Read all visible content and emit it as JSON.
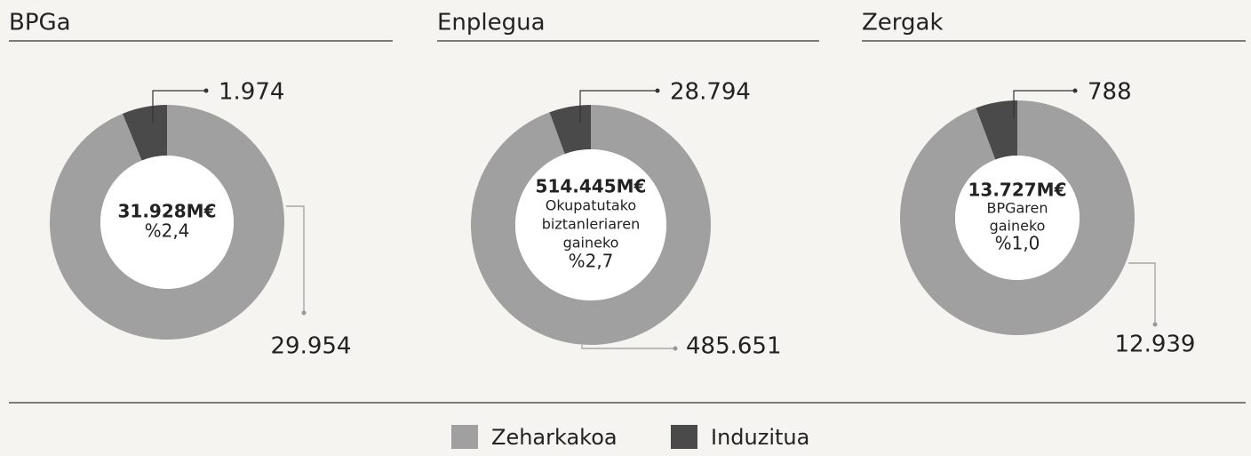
{
  "chart_data": [
    {
      "type": "donut",
      "title": "BPGa",
      "categories": [
        "Zeharkakoa",
        "Induzitua"
      ],
      "values": [
        29954,
        1974
      ],
      "value_labels": [
        "29.954",
        "1.974"
      ],
      "colors": [
        "#a0a0a0",
        "#4a4a4a"
      ],
      "center_lines": [
        "31.928M€",
        "%2,4"
      ]
    },
    {
      "type": "donut",
      "title": "Enplegua",
      "categories": [
        "Zeharkakoa",
        "Induzitua"
      ],
      "values": [
        485651,
        28794
      ],
      "value_labels": [
        "485.651",
        "28.794"
      ],
      "colors": [
        "#a0a0a0",
        "#4a4a4a"
      ],
      "center_lines": [
        "514.445M€",
        "Okupatutako",
        "biztanleriaren",
        "gaineko",
        "%2,7"
      ]
    },
    {
      "type": "donut",
      "title": "Zergak",
      "categories": [
        "Zeharkakoa",
        "Induzitua"
      ],
      "values": [
        12939,
        788
      ],
      "value_labels": [
        "12.939",
        "788"
      ],
      "colors": [
        "#a0a0a0",
        "#4a4a4a"
      ],
      "center_lines": [
        "13.727M€",
        "BPGaren",
        "gaineko",
        "%1,0"
      ]
    }
  ]
}
